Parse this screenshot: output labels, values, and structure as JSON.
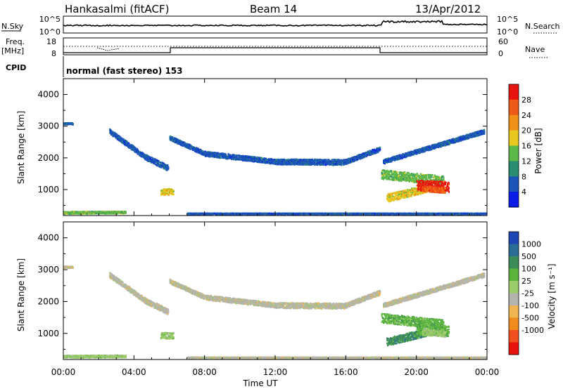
{
  "header": {
    "station": "Hankasalmi (fitACF)",
    "beam": "Beam 14",
    "date": "13/Apr/2012"
  },
  "noise_panel": {
    "left_label": "N.Sky",
    "right_label": "N.Search",
    "left_ticks": [
      "10^5",
      "10^0"
    ],
    "right_ticks": [
      "10^5",
      "10^0"
    ]
  },
  "freq_panel": {
    "left_label": "Freq.",
    "left_unit": "[MHz]",
    "right_label": "Nave",
    "left_ticks": [
      "18",
      "8"
    ],
    "right_ticks": [
      "60",
      "0"
    ]
  },
  "cpid": {
    "label": "CPID",
    "text": "normal (fast stereo) 153"
  },
  "chart_data": [
    {
      "type": "heatmap",
      "name": "power",
      "ylabel": "Slant Range [km]",
      "xlabel": "Time UT",
      "x_ticks": [
        "00:00",
        "04:00",
        "08:00",
        "12:00",
        "16:00",
        "20:00",
        "00:00"
      ],
      "xlim_hours": [
        0,
        24
      ],
      "y_ticks": [
        1000,
        2000,
        3000,
        4000
      ],
      "ylim_km": [
        180,
        4500
      ],
      "colorbar_label": "Power [dB]",
      "colorbar_ticks": [
        "4",
        "8",
        "12",
        "16",
        "20",
        "24",
        "28"
      ],
      "colorbar_colors": [
        "#0a1de8",
        "#1c55b8",
        "#2a8c70",
        "#5ab848",
        "#e8c81e",
        "#f09018",
        "#ee5a18",
        "#e8140e"
      ],
      "bands": [
        {
          "t0": 2.6,
          "t1": 4.6,
          "r0": 2850,
          "r1": 2050,
          "w": 160,
          "c": 1
        },
        {
          "t0": 4.6,
          "t1": 5.9,
          "r0": 2050,
          "r1": 1700,
          "w": 180,
          "c": 1
        },
        {
          "t0": 6.0,
          "t1": 8.0,
          "r0": 2650,
          "r1": 2150,
          "w": 140,
          "c": 1
        },
        {
          "t0": 8.0,
          "t1": 12.0,
          "r0": 2150,
          "r1": 1900,
          "w": 160,
          "c": 1
        },
        {
          "t0": 12.0,
          "t1": 16.0,
          "r0": 1900,
          "r1": 1880,
          "w": 180,
          "c": 1
        },
        {
          "t0": 16.0,
          "t1": 17.9,
          "r0": 1900,
          "r1": 2300,
          "w": 150,
          "c": 1
        },
        {
          "t0": 18.1,
          "t1": 23.8,
          "r0": 1900,
          "r1": 2850,
          "w": 140,
          "c": 1
        },
        {
          "t0": 18.0,
          "t1": 21.5,
          "r0": 1500,
          "r1": 1300,
          "w": 300,
          "c": 3
        },
        {
          "t0": 18.3,
          "t1": 20.5,
          "r0": 750,
          "r1": 1050,
          "w": 250,
          "c": 4
        },
        {
          "t0": 20.0,
          "t1": 21.8,
          "r0": 1150,
          "r1": 1100,
          "w": 350,
          "c": 7
        },
        {
          "t0": 20.3,
          "t1": 21.6,
          "r0": 1050,
          "r1": 1000,
          "w": 180,
          "c": 6
        },
        {
          "t0": 0.0,
          "t1": 3.5,
          "r0": 290,
          "r1": 300,
          "w": 80,
          "c": 3
        },
        {
          "t0": 5.5,
          "t1": 6.2,
          "r0": 950,
          "r1": 950,
          "w": 200,
          "c": 4
        },
        {
          "t0": 7.0,
          "t1": 23.9,
          "r0": 260,
          "r1": 260,
          "w": 40,
          "c": 1
        },
        {
          "t0": 0.0,
          "t1": 0.5,
          "r0": 3100,
          "r1": 3100,
          "w": 60,
          "c": 1
        }
      ]
    },
    {
      "type": "heatmap",
      "name": "velocity",
      "ylabel": "Slant Range [km]",
      "xlabel": "Time UT",
      "x_ticks": [
        "00:00",
        "04:00",
        "08:00",
        "12:00",
        "16:00",
        "20:00",
        "00:00"
      ],
      "xlim_hours": [
        0,
        24
      ],
      "y_ticks": [
        1000,
        2000,
        3000,
        4000
      ],
      "ylim_km": [
        180,
        4500
      ],
      "colorbar_label": "Velocity [m s⁻¹]",
      "colorbar_ticks": [
        "1000",
        "500",
        "100",
        "25",
        "-25",
        "-100",
        "-500",
        "-1000"
      ],
      "colorbar_colors": [
        "#1e46b4",
        "#2a6e96",
        "#3c8c5a",
        "#5ab43c",
        "#9ccc6a",
        "#b4b4ae",
        "#f0b450",
        "#f08c1e",
        "#f0501e",
        "#e8140e"
      ],
      "bands": [
        {
          "t0": 2.6,
          "t1": 4.6,
          "r0": 2850,
          "r1": 2050,
          "w": 160,
          "c": 5
        },
        {
          "t0": 4.6,
          "t1": 5.9,
          "r0": 2050,
          "r1": 1700,
          "w": 180,
          "c": 5
        },
        {
          "t0": 6.0,
          "t1": 8.0,
          "r0": 2650,
          "r1": 2150,
          "w": 140,
          "c": 5
        },
        {
          "t0": 8.0,
          "t1": 12.0,
          "r0": 2150,
          "r1": 1900,
          "w": 160,
          "c": 5
        },
        {
          "t0": 12.0,
          "t1": 16.0,
          "r0": 1900,
          "r1": 1880,
          "w": 180,
          "c": 5
        },
        {
          "t0": 16.0,
          "t1": 17.9,
          "r0": 1900,
          "r1": 2300,
          "w": 150,
          "c": 5
        },
        {
          "t0": 18.1,
          "t1": 23.8,
          "r0": 1900,
          "r1": 2850,
          "w": 140,
          "c": 5
        },
        {
          "t0": 18.0,
          "t1": 21.5,
          "r0": 1500,
          "r1": 1300,
          "w": 300,
          "c": 3
        },
        {
          "t0": 18.3,
          "t1": 20.5,
          "r0": 750,
          "r1": 1050,
          "w": 250,
          "c": 2
        },
        {
          "t0": 20.0,
          "t1": 21.8,
          "r0": 1150,
          "r1": 1100,
          "w": 350,
          "c": 3
        },
        {
          "t0": 20.3,
          "t1": 21.6,
          "r0": 1050,
          "r1": 1000,
          "w": 180,
          "c": 4
        },
        {
          "t0": 0.0,
          "t1": 3.5,
          "r0": 290,
          "r1": 300,
          "w": 80,
          "c": 4
        },
        {
          "t0": 5.5,
          "t1": 6.2,
          "r0": 950,
          "r1": 950,
          "w": 200,
          "c": 4
        },
        {
          "t0": 7.0,
          "t1": 23.9,
          "r0": 260,
          "r1": 260,
          "w": 40,
          "c": 5
        },
        {
          "t0": 0.0,
          "t1": 0.5,
          "r0": 3100,
          "r1": 3100,
          "w": 60,
          "c": 5
        }
      ]
    }
  ]
}
